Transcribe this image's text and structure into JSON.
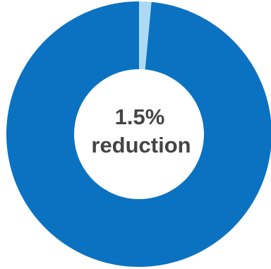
{
  "chart_data": {
    "type": "donut",
    "categories": [
      null,
      null
    ],
    "values": [
      1.5,
      98.5
    ],
    "value_labels": [
      "1.5%",
      null
    ],
    "colors": [
      "#aed9f5",
      "#0b72c2"
    ],
    "center_label": "reduction"
  }
}
